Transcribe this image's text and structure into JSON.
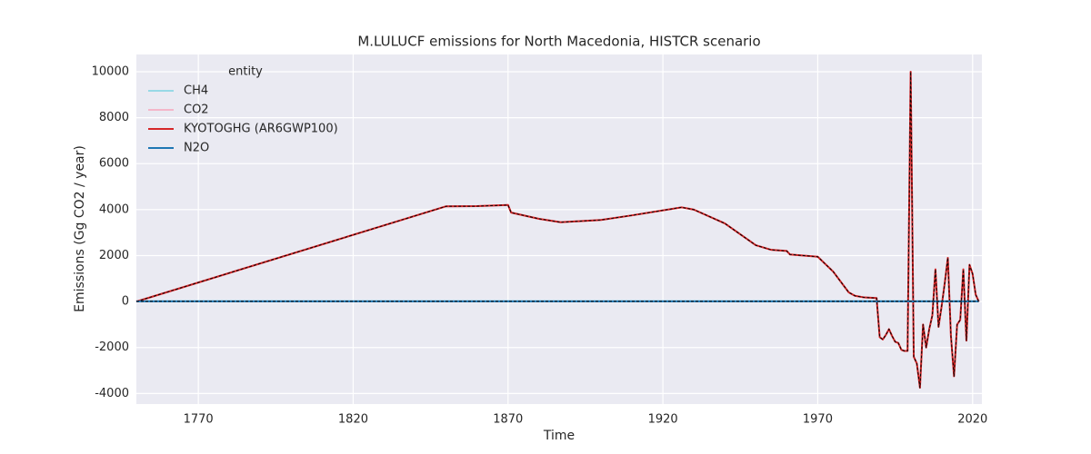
{
  "chart_data": {
    "type": "line",
    "title": "M.LULUCF emissions for North Macedonia, HISTCR scenario",
    "x_label": "Time",
    "y_label": "Emissions (Gg CO2 / year)",
    "legend_title": "entity",
    "legend": "upper left",
    "grid": true,
    "xlim": [
      1750,
      2023
    ],
    "ylim": [
      -4460,
      10750
    ],
    "xticks": [
      1770,
      1820,
      1870,
      1920,
      1970,
      2020
    ],
    "yticks": [
      -4000,
      -2000,
      0,
      2000,
      4000,
      6000,
      8000,
      10000
    ],
    "x": [
      1750,
      1850,
      1860,
      1870,
      1871,
      1880,
      1887,
      1900,
      1910,
      1926,
      1930,
      1940,
      1950,
      1955,
      1960,
      1961,
      1970,
      1975,
      1980,
      1982,
      1985,
      1989,
      1990,
      1991,
      1992,
      1993,
      1994,
      1995,
      1996,
      1997,
      1998,
      1999,
      2000,
      2001,
      2002,
      2003,
      2004,
      2005,
      2006,
      2007,
      2008,
      2009,
      2010,
      2011,
      2012,
      2013,
      2014,
      2015,
      2016,
      2017,
      2018,
      2019,
      2020,
      2021,
      2022
    ],
    "series": [
      {
        "name": "CH4",
        "color": "#98d9e6",
        "values": [
          20,
          20,
          20,
          20,
          20,
          20,
          20,
          20,
          20,
          20,
          20,
          20,
          20,
          20,
          20,
          20,
          20,
          20,
          20,
          20,
          20,
          20,
          20,
          20,
          20,
          20,
          20,
          20,
          20,
          20,
          20,
          20,
          20,
          20,
          20,
          20,
          20,
          20,
          20,
          20,
          20,
          20,
          20,
          20,
          20,
          20,
          20,
          20,
          20,
          20,
          20,
          20,
          20,
          20,
          20
        ]
      },
      {
        "name": "CO2",
        "color": "#f4b6c9",
        "values": [
          0,
          4145,
          4150,
          4200,
          3870,
          3600,
          3450,
          3550,
          3750,
          4100,
          4000,
          3400,
          2450,
          2250,
          2200,
          2050,
          1950,
          1300,
          400,
          250,
          180,
          150,
          -1550,
          -1650,
          -1450,
          -1200,
          -1500,
          -1750,
          -1800,
          -2100,
          -2150,
          -2150,
          10000,
          -2400,
          -2700,
          -3750,
          -1000,
          -2000,
          -1200,
          -600,
          1400,
          -1100,
          -200,
          800,
          1900,
          -1500,
          -3250,
          -1000,
          -800,
          1400,
          -1700,
          1600,
          1200,
          300,
          0
        ]
      },
      {
        "name": "KYOTOGHG (AR6GWP100)",
        "color": "#d62728",
        "values": [
          0,
          4145,
          4150,
          4200,
          3870,
          3600,
          3450,
          3550,
          3750,
          4100,
          4000,
          3400,
          2450,
          2250,
          2200,
          2050,
          1950,
          1300,
          400,
          250,
          180,
          150,
          -1550,
          -1650,
          -1450,
          -1200,
          -1500,
          -1750,
          -1800,
          -2100,
          -2150,
          -2150,
          10000,
          -2400,
          -2700,
          -3750,
          -1000,
          -2000,
          -1200,
          -600,
          1400,
          -1100,
          -200,
          800,
          1900,
          -1500,
          -3250,
          -1000,
          -800,
          1400,
          -1700,
          1600,
          1200,
          300,
          0
        ]
      },
      {
        "name": "N2O",
        "color": "#1f77b4",
        "values": [
          10,
          10,
          10,
          10,
          10,
          10,
          10,
          10,
          10,
          10,
          10,
          10,
          10,
          10,
          10,
          10,
          10,
          10,
          10,
          10,
          10,
          10,
          10,
          10,
          10,
          10,
          10,
          10,
          10,
          10,
          10,
          10,
          10,
          10,
          10,
          10,
          10,
          10,
          10,
          10,
          10,
          10,
          10,
          10,
          10,
          10,
          10,
          10,
          10,
          10,
          10,
          10,
          10,
          10,
          10
        ]
      }
    ]
  }
}
